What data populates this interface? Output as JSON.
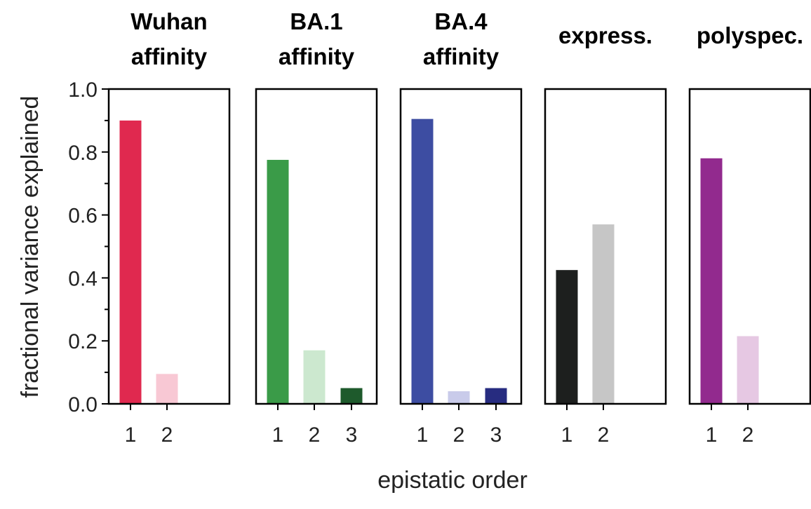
{
  "chart_data": {
    "type": "bar",
    "ylabel": "fractional variance explained",
    "xlabel": "epistatic order",
    "ylim": [
      0,
      1
    ],
    "yticks": [
      "0.0",
      "0.2",
      "0.4",
      "0.6",
      "0.8",
      "1.0"
    ],
    "panels": [
      {
        "title_lines": [
          "Wuhan",
          "affinity"
        ],
        "categories": [
          "1",
          "2"
        ],
        "values": [
          0.9,
          0.095
        ],
        "colors": [
          "#e0294f",
          "#f8c8d4"
        ]
      },
      {
        "title_lines": [
          "BA.1",
          "affinity"
        ],
        "categories": [
          "1",
          "2",
          "3"
        ],
        "values": [
          0.775,
          0.17,
          0.05
        ],
        "colors": [
          "#3a9b48",
          "#cce8cf",
          "#1e5a2c"
        ]
      },
      {
        "title_lines": [
          "BA.4",
          "affinity"
        ],
        "categories": [
          "1",
          "2",
          "3"
        ],
        "values": [
          0.905,
          0.04,
          0.05
        ],
        "colors": [
          "#3d4da2",
          "#c9cbea",
          "#272c80"
        ]
      },
      {
        "title_lines": [
          "express."
        ],
        "categories": [
          "1",
          "2"
        ],
        "values": [
          0.425,
          0.57
        ],
        "colors": [
          "#1d1f1e",
          "#c6c6c6"
        ]
      },
      {
        "title_lines": [
          "polyspec."
        ],
        "categories": [
          "1",
          "2"
        ],
        "values": [
          0.78,
          0.215
        ],
        "colors": [
          "#922a8e",
          "#e6c8e3"
        ]
      }
    ]
  }
}
